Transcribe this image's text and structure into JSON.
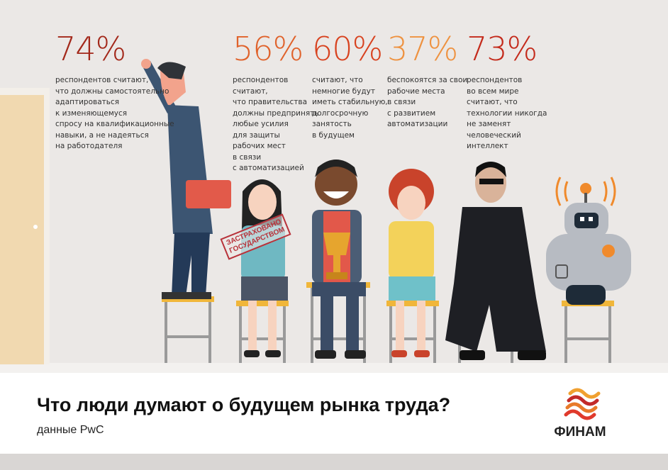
{
  "stats": [
    {
      "percent": "74%",
      "color": "#a3281a",
      "text": "респондентов считают,\nчто должны самостоятельно\nадаптироваться\nк изменяющемуся\nспросу на квалификационные\nнавыки, а не надеяться\nна работодателя"
    },
    {
      "percent": "56%",
      "color": "#e0622b",
      "text": "респондентов\nсчитают,\nчто правительства\nдолжны предпринять\nлюбые усилия\nдля защиты\nрабочих мест\nв связи\nс автоматизацией"
    },
    {
      "percent": "60%",
      "color": "#d8421f",
      "text": "считают, что\nнемногие будут\nиметь стабильную,\nдолгосрочную\nзанятость\nв будущем"
    },
    {
      "percent": "37%",
      "color": "#ee9240",
      "text": "беспокоятся за свои\nрабочие места\nв связи\nс развитием\nавтоматизации"
    },
    {
      "percent": "73%",
      "color": "#c42a1b",
      "text": "респондентов\nво всем мире\nсчитают, что\nтехнологии никогда\nне заменят\nчеловеческий\nинтеллект"
    }
  ],
  "stamp": {
    "line1": "ЗАСТРАХОВАНО",
    "line2": "ГОСУДАРСТВОМ"
  },
  "footer": {
    "title": "Что люди думают о будущем рынка труда?",
    "subtitle": "данные PwC",
    "logo": "ФИНАМ"
  }
}
